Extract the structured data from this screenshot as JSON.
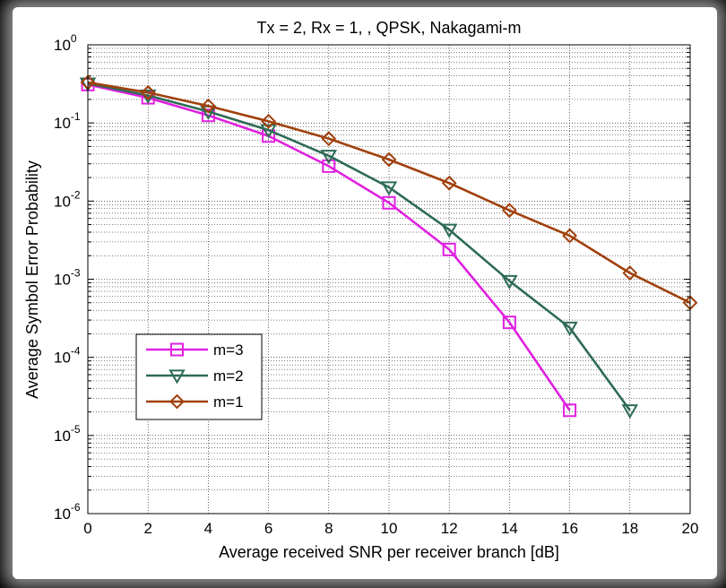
{
  "chart_data": {
    "type": "line",
    "title": "Tx = 2, Rx = 1, , QPSK, Nakagami-m",
    "xlabel": "Average received SNR per receiver branch [dB]",
    "ylabel": "Average Symbol Error Probability",
    "xlim": [
      0,
      20
    ],
    "ylim": [
      1e-06,
      1
    ],
    "yscale": "log",
    "grid": true,
    "x_ticks": [
      "0",
      "2",
      "4",
      "6",
      "8",
      "10",
      "12",
      "14",
      "16",
      "18",
      "20"
    ],
    "y_ticks": [
      {
        "base": "10",
        "exp": "0"
      },
      {
        "base": "10",
        "exp": "-1"
      },
      {
        "base": "10",
        "exp": "-2"
      },
      {
        "base": "10",
        "exp": "-3"
      },
      {
        "base": "10",
        "exp": "-4"
      },
      {
        "base": "10",
        "exp": "-5"
      },
      {
        "base": "10",
        "exp": "-6"
      }
    ],
    "legend_position": "bottom-left",
    "series": [
      {
        "name": "m=3",
        "color": "#e020e0",
        "marker": "square",
        "x": [
          0,
          2,
          4,
          6,
          8,
          10,
          12,
          14,
          16
        ],
        "y": [
          0.31,
          0.21,
          0.125,
          0.068,
          0.028,
          0.0095,
          0.0024,
          0.00028,
          2.1e-05
        ]
      },
      {
        "name": "m=2",
        "color": "#2e6b55",
        "marker": "triangle-down",
        "x": [
          0,
          2,
          4,
          6,
          8,
          10,
          12,
          14,
          16,
          18
        ],
        "y": [
          0.32,
          0.225,
          0.14,
          0.081,
          0.038,
          0.015,
          0.0043,
          0.00095,
          0.00024,
          2.1e-05
        ]
      },
      {
        "name": "m=1",
        "color": "#a0400c",
        "marker": "diamond",
        "x": [
          0,
          2,
          4,
          6,
          8,
          10,
          12,
          14,
          16,
          18,
          20
        ],
        "y": [
          0.33,
          0.245,
          0.165,
          0.105,
          0.063,
          0.034,
          0.017,
          0.0076,
          0.0036,
          0.0012,
          0.0005
        ]
      }
    ]
  }
}
